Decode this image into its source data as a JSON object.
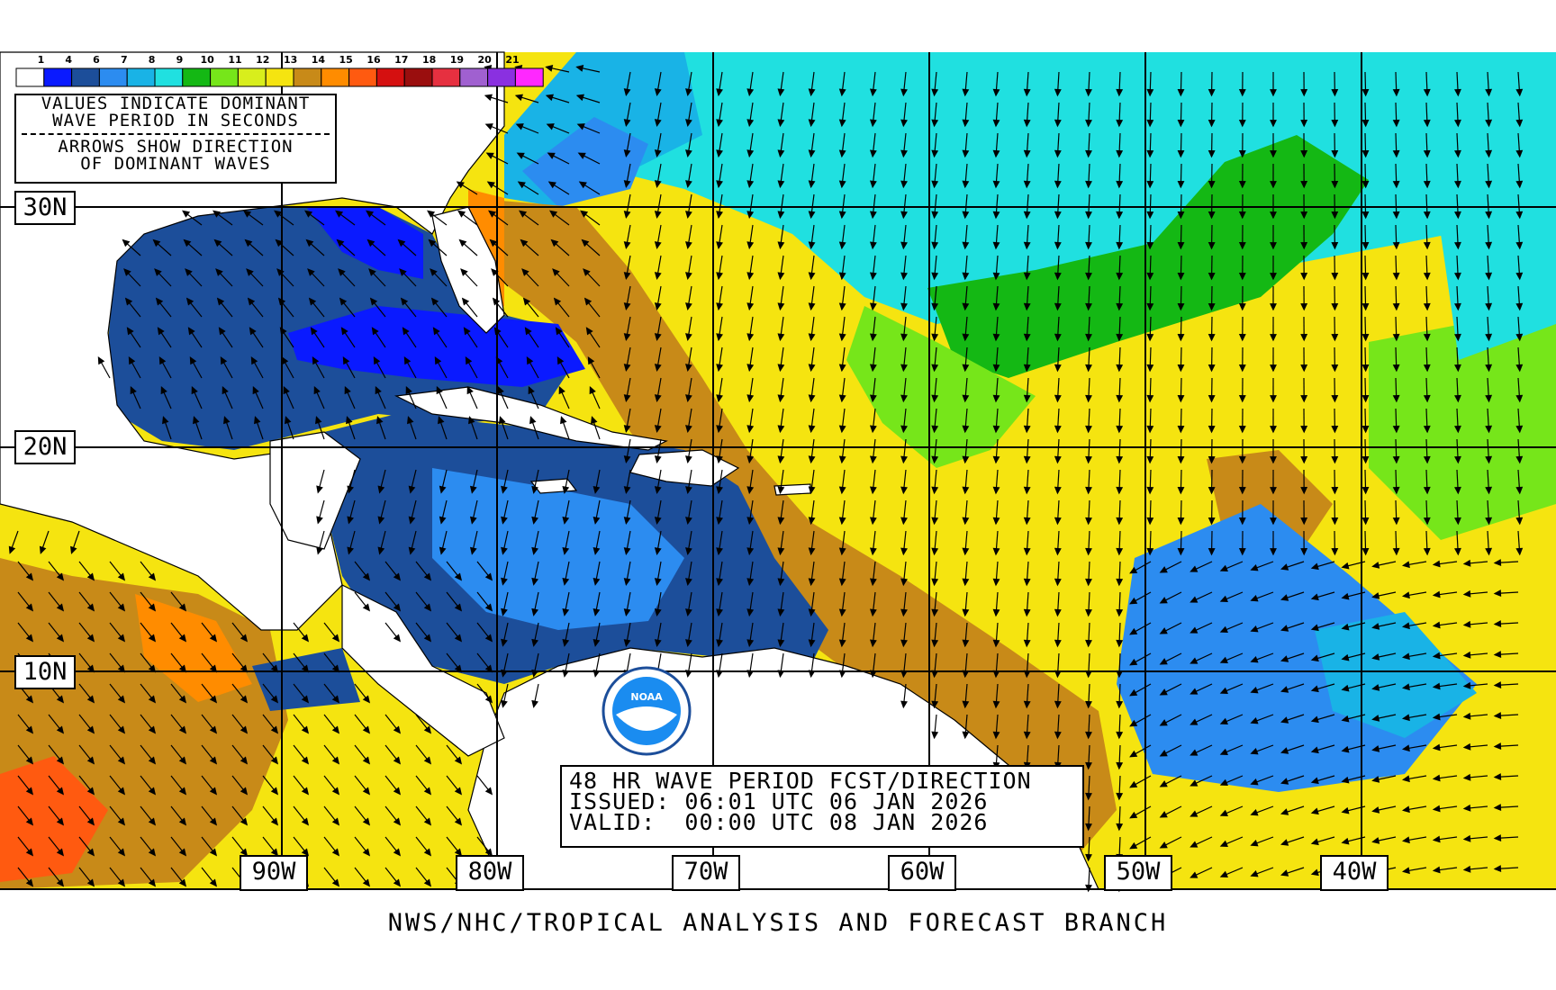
{
  "colorbar": {
    "labels": [
      "1",
      "4",
      "6",
      "7",
      "8",
      "9",
      "10",
      "11",
      "12",
      "13",
      "14",
      "15",
      "16",
      "17",
      "18",
      "19",
      "20",
      "21"
    ],
    "colors": [
      "#ffffff",
      "#0a1aff",
      "#1c4e9a",
      "#2c8cf0",
      "#19b3e6",
      "#20e0e0",
      "#14b814",
      "#76e61a",
      "#d8ee1c",
      "#f5e410",
      "#c88a18",
      "#ff8c00",
      "#ff5a10",
      "#d51010",
      "#9a0e0e",
      "#e63040",
      "#a060d0",
      "#8a30e0",
      "#ff28ff"
    ]
  },
  "legend": {
    "line1": "VALUES INDICATE DOMINANT",
    "line2": "WAVE PERIOD IN SECONDS",
    "line3": "ARROWS SHOW DIRECTION",
    "line4": "OF DOMINANT WAVES"
  },
  "latitudes": [
    "30N",
    "20N",
    "10N"
  ],
  "longitudes": [
    "90W",
    "80W",
    "70W",
    "60W",
    "50W",
    "40W"
  ],
  "title": {
    "line1": "48 HR WAVE PERIOD FCST/DIRECTION",
    "line2": "ISSUED: 06:01 UTC 06 JAN 2026",
    "line3": "VALID:  00:00 UTC 08 JAN 2026"
  },
  "logo_text": "NOAA",
  "footer": "NWS/NHC/TROPICAL ANALYSIS AND FORECAST BRANCH",
  "colors": {
    "land": "#ffffff",
    "deep_blue": "#1c4e9a",
    "blue": "#0a1aff",
    "mid_blue": "#2c8cf0",
    "cyan": "#20e0e0",
    "teal": "#19b3e6",
    "green": "#14b814",
    "lime": "#76e61a",
    "yellow": "#f5e410",
    "brown": "#c88a18",
    "orange": "#ff8c00",
    "red_orange": "#ff5a10"
  }
}
